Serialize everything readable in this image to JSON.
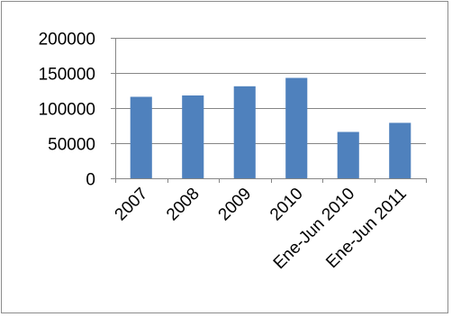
{
  "chart_data": {
    "type": "bar",
    "title": "",
    "xlabel": "",
    "ylabel": "",
    "categories": [
      "2007",
      "2008",
      "2009",
      "2010",
      "Ene-Jun 2010",
      "Ene-Jun 2011"
    ],
    "values": [
      116000,
      118000,
      131000,
      143000,
      66000,
      79000
    ],
    "ylim": [
      0,
      200000
    ],
    "yticks": [
      0,
      50000,
      100000,
      150000,
      200000
    ],
    "ytick_labels": [
      "0",
      "50000",
      "100000",
      "150000",
      "200000"
    ],
    "grid": true,
    "legend": "none",
    "bar_color": "#4f81bd",
    "grid_color": "#868686",
    "axis_color": "#868686"
  }
}
